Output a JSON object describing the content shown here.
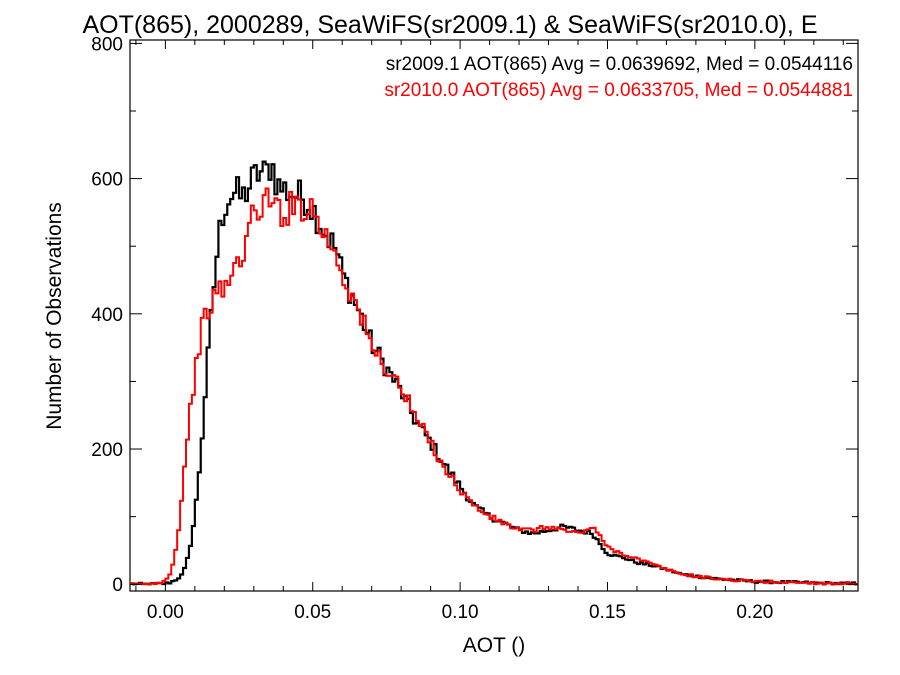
{
  "colors": {
    "series_1": "#000000",
    "series_2": "#ff0000",
    "axis": "#000000",
    "background": "#ffffff"
  },
  "chart_data": {
    "type": "line",
    "title": "AOT(865), 2000289, SeaWiFS(sr2009.1) & SeaWiFS(sr2010.0), E",
    "xlabel": "AOT ()",
    "ylabel": "Number of Observations",
    "xlim": [
      -0.012,
      0.235
    ],
    "ylim": [
      -10,
      805
    ],
    "x_ticks": [
      0.0,
      0.05,
      0.1,
      0.15,
      0.2
    ],
    "x_tick_labels": [
      "0.00",
      "0.05",
      "0.10",
      "0.15",
      "0.20"
    ],
    "y_ticks": [
      0,
      200,
      400,
      600,
      800
    ],
    "y_tick_labels": [
      "0",
      "200",
      "400",
      "600",
      "800"
    ],
    "grid": false,
    "step_histogram": true,
    "annotations": [
      "sr2009.1 AOT(865) Avg = 0.0639692, Med = 0.0544116",
      "sr2010.0 AOT(865) Avg = 0.0633705, Med = 0.0544881"
    ],
    "series": [
      {
        "color": "#000000",
        "x": [
          -0.01,
          -0.005,
          0.0,
          0.002,
          0.004,
          0.006,
          0.008,
          0.01,
          0.012,
          0.014,
          0.016,
          0.018,
          0.02,
          0.022,
          0.024,
          0.026,
          0.028,
          0.03,
          0.032,
          0.034,
          0.036,
          0.038,
          0.04,
          0.042,
          0.045,
          0.048,
          0.05,
          0.052,
          0.055,
          0.058,
          0.06,
          0.063,
          0.066,
          0.07,
          0.075,
          0.08,
          0.085,
          0.09,
          0.095,
          0.1,
          0.105,
          0.11,
          0.115,
          0.12,
          0.125,
          0.13,
          0.135,
          0.14,
          0.145,
          0.15,
          0.155,
          0.16,
          0.165,
          0.17,
          0.175,
          0.18,
          0.185,
          0.19,
          0.2,
          0.21,
          0.22,
          0.23,
          0.235
        ],
        "y": [
          0,
          0,
          1,
          3,
          8,
          15,
          45,
          100,
          190,
          310,
          420,
          510,
          560,
          575,
          580,
          570,
          585,
          600,
          610,
          605,
          625,
          590,
          585,
          580,
          575,
          570,
          555,
          540,
          515,
          495,
          460,
          430,
          400,
          355,
          320,
          285,
          240,
          210,
          175,
          145,
          115,
          100,
          90,
          80,
          75,
          80,
          85,
          80,
          75,
          45,
          40,
          32,
          28,
          22,
          15,
          12,
          9,
          7,
          4,
          3,
          2,
          1,
          1
        ]
      },
      {
        "color": "#ff0000",
        "x": [
          -0.01,
          -0.005,
          0.0,
          0.002,
          0.004,
          0.006,
          0.008,
          0.01,
          0.012,
          0.014,
          0.016,
          0.018,
          0.02,
          0.022,
          0.024,
          0.026,
          0.028,
          0.03,
          0.032,
          0.034,
          0.036,
          0.038,
          0.04,
          0.042,
          0.045,
          0.048,
          0.05,
          0.052,
          0.055,
          0.058,
          0.06,
          0.063,
          0.066,
          0.07,
          0.075,
          0.08,
          0.085,
          0.09,
          0.095,
          0.1,
          0.105,
          0.11,
          0.115,
          0.12,
          0.125,
          0.13,
          0.135,
          0.14,
          0.145,
          0.15,
          0.155,
          0.16,
          0.165,
          0.17,
          0.175,
          0.18,
          0.185,
          0.19,
          0.2,
          0.21,
          0.22,
          0.23,
          0.235
        ],
        "y": [
          0,
          0,
          5,
          20,
          60,
          150,
          240,
          310,
          370,
          400,
          420,
          430,
          440,
          450,
          470,
          490,
          520,
          545,
          560,
          570,
          555,
          560,
          550,
          555,
          565,
          560,
          555,
          535,
          510,
          490,
          460,
          430,
          400,
          350,
          320,
          290,
          245,
          210,
          170,
          140,
          115,
          100,
          90,
          80,
          80,
          85,
          80,
          75,
          85,
          55,
          45,
          38,
          30,
          22,
          15,
          12,
          9,
          7,
          4,
          3,
          2,
          1,
          1
        ]
      }
    ]
  }
}
